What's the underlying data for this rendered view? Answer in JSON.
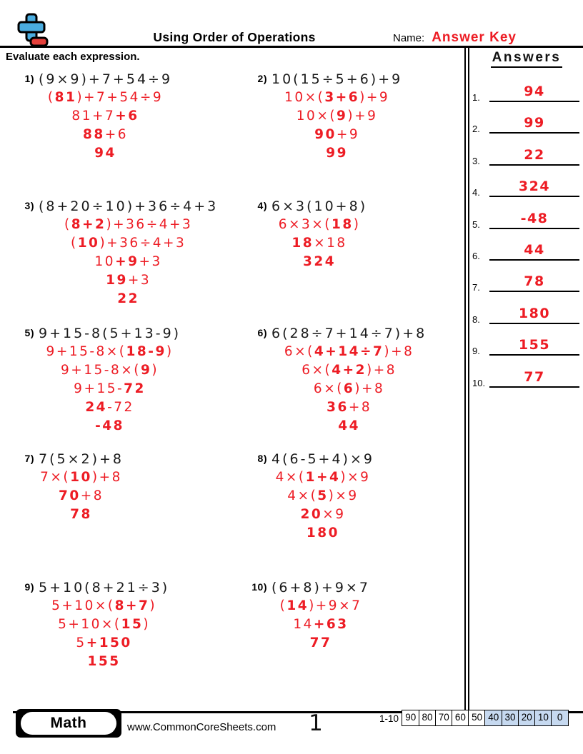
{
  "header": {
    "title": "Using Order of Operations",
    "name_label": "Name:",
    "name_value": "Answer Key",
    "instruction": "Evaluate each expression.",
    "answers_title": "Answers"
  },
  "problems": [
    {
      "number": "1)",
      "expression": "(9×9)+7+54÷9",
      "steps": [
        [
          [
            "(",
            0
          ],
          [
            "81",
            1
          ],
          [
            ")+7+54÷9",
            0
          ]
        ],
        [
          [
            "81+7",
            0
          ],
          [
            "+6",
            1
          ]
        ],
        [
          [
            "88",
            1
          ],
          [
            "+6",
            0
          ]
        ],
        [
          [
            "94",
            1
          ]
        ]
      ]
    },
    {
      "number": "2)",
      "expression": "10(15÷5+6)+9",
      "steps": [
        [
          [
            "10×(",
            0
          ],
          [
            "3+6",
            1
          ],
          [
            ")+9",
            0
          ]
        ],
        [
          [
            "10×(",
            0
          ],
          [
            "9",
            1
          ],
          [
            ")+9",
            0
          ]
        ],
        [
          [
            "90",
            1
          ],
          [
            "+9",
            0
          ]
        ],
        [
          [
            "99",
            1
          ]
        ]
      ]
    },
    {
      "number": "3)",
      "expression": "(8+20÷10)+36÷4+3",
      "steps": [
        [
          [
            "(",
            0
          ],
          [
            "8+2",
            1
          ],
          [
            ")+36÷4+3",
            0
          ]
        ],
        [
          [
            "(",
            0
          ],
          [
            "10",
            1
          ],
          [
            ")+36÷4+3",
            0
          ]
        ],
        [
          [
            "10",
            0
          ],
          [
            "+9",
            1
          ],
          [
            "+3",
            0
          ]
        ],
        [
          [
            "19",
            1
          ],
          [
            "+3",
            0
          ]
        ],
        [
          [
            "22",
            1
          ]
        ]
      ]
    },
    {
      "number": "4)",
      "expression": "6×3(10+8)",
      "steps": [
        [
          [
            "6×3×(",
            0
          ],
          [
            "18",
            1
          ],
          [
            ")",
            0
          ]
        ],
        [
          [
            "18",
            1
          ],
          [
            "×18",
            0
          ]
        ],
        [
          [
            "324",
            1
          ]
        ]
      ]
    },
    {
      "number": "5)",
      "expression": "9+15-8(5+13-9)",
      "steps": [
        [
          [
            "9+15-8×(",
            0
          ],
          [
            "18-9",
            1
          ],
          [
            ")",
            0
          ]
        ],
        [
          [
            "9+15-8×(",
            0
          ],
          [
            "9",
            1
          ],
          [
            ")",
            0
          ]
        ],
        [
          [
            "9+15-",
            0
          ],
          [
            "72",
            1
          ]
        ],
        [
          [
            "24",
            1
          ],
          [
            "-72",
            0
          ]
        ],
        [
          [
            "-48",
            1
          ]
        ]
      ]
    },
    {
      "number": "6)",
      "expression": "6(28÷7+14÷7)+8",
      "steps": [
        [
          [
            "6×(",
            0
          ],
          [
            "4+14÷7",
            1
          ],
          [
            ")+8",
            0
          ]
        ],
        [
          [
            "6×(",
            0
          ],
          [
            "4+2",
            1
          ],
          [
            ")+8",
            0
          ]
        ],
        [
          [
            "6×(",
            0
          ],
          [
            "6",
            1
          ],
          [
            ")+8",
            0
          ]
        ],
        [
          [
            "36",
            1
          ],
          [
            "+8",
            0
          ]
        ],
        [
          [
            "44",
            1
          ]
        ]
      ]
    },
    {
      "number": "7)",
      "expression": "7(5×2)+8",
      "steps": [
        [
          [
            "7×(",
            0
          ],
          [
            "10",
            1
          ],
          [
            ")+8",
            0
          ]
        ],
        [
          [
            "70",
            1
          ],
          [
            "+8",
            0
          ]
        ],
        [
          [
            "78",
            1
          ]
        ]
      ]
    },
    {
      "number": "8)",
      "expression": "4(6-5+4)×9",
      "steps": [
        [
          [
            "4×(",
            0
          ],
          [
            "1+4",
            1
          ],
          [
            ")×9",
            0
          ]
        ],
        [
          [
            "4×(",
            0
          ],
          [
            "5",
            1
          ],
          [
            ")×9",
            0
          ]
        ],
        [
          [
            "20",
            1
          ],
          [
            "×9",
            0
          ]
        ],
        [
          [
            "180",
            1
          ]
        ]
      ]
    },
    {
      "number": "9)",
      "expression": "5+10(8+21÷3)",
      "steps": [
        [
          [
            "5+10×(",
            0
          ],
          [
            "8+7",
            1
          ],
          [
            ")",
            0
          ]
        ],
        [
          [
            "5+10×(",
            0
          ],
          [
            "15",
            1
          ],
          [
            ")",
            0
          ]
        ],
        [
          [
            "5",
            0
          ],
          [
            "+150",
            1
          ]
        ],
        [
          [
            "155",
            1
          ]
        ]
      ]
    },
    {
      "number": "10)",
      "expression": "(6+8)+9×7",
      "steps": [
        [
          [
            "(",
            0
          ],
          [
            "14",
            1
          ],
          [
            ")+9×7",
            0
          ]
        ],
        [
          [
            "14",
            0
          ],
          [
            "+63",
            1
          ]
        ],
        [
          [
            "77",
            1
          ]
        ]
      ]
    }
  ],
  "answers": [
    {
      "number": "1.",
      "value": "94"
    },
    {
      "number": "2.",
      "value": "99"
    },
    {
      "number": "3.",
      "value": "22"
    },
    {
      "number": "4.",
      "value": "324"
    },
    {
      "number": "5.",
      "value": "-48"
    },
    {
      "number": "6.",
      "value": "44"
    },
    {
      "number": "7.",
      "value": "78"
    },
    {
      "number": "8.",
      "value": "180"
    },
    {
      "number": "9.",
      "value": "155"
    },
    {
      "number": "10.",
      "value": "77"
    }
  ],
  "footer": {
    "subject": "Math",
    "website": "www.CommonCoreSheets.com",
    "page_number": "1",
    "score_label": "1-10",
    "score_boxes": [
      {
        "value": "90",
        "highlighted": false
      },
      {
        "value": "80",
        "highlighted": false
      },
      {
        "value": "70",
        "highlighted": false
      },
      {
        "value": "60",
        "highlighted": false
      },
      {
        "value": "50",
        "highlighted": false
      },
      {
        "value": "40",
        "highlighted": true
      },
      {
        "value": "30",
        "highlighted": true
      },
      {
        "value": "20",
        "highlighted": true
      },
      {
        "value": "10",
        "highlighted": true
      },
      {
        "value": "0",
        "highlighted": true
      }
    ]
  },
  "colors": {
    "answer_red": "#ed1c24",
    "score_highlight_blue": "#c6d9f0",
    "logo_blue": "#4aade0",
    "logo_red": "#e4403b"
  }
}
